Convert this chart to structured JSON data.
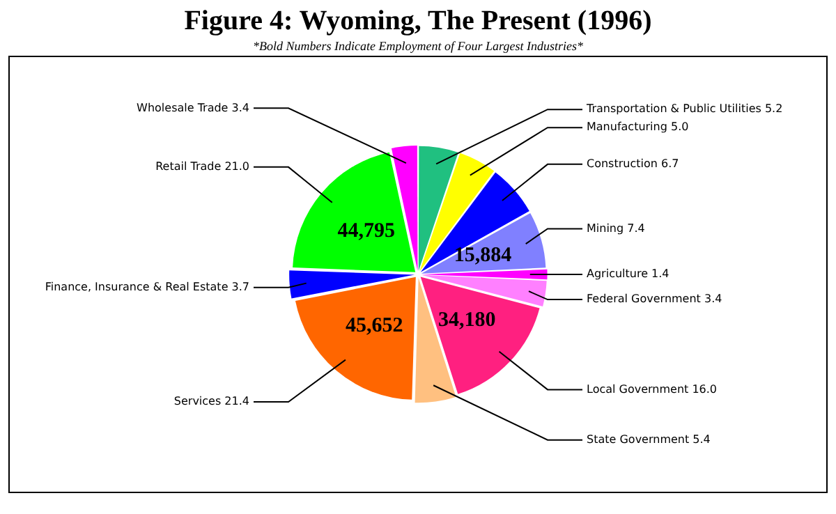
{
  "chart_data": {
    "type": "pie",
    "title": "Figure 4:  Wyoming, The Present (1996)",
    "subtitle": "*Bold Numbers Indicate Employment of Four Largest Industries*",
    "categories": [
      "Transportation & Public Utilities",
      "Manufacturing",
      "Construction",
      "Mining",
      "Agriculture",
      "Federal Government",
      "Local Government",
      "State Government",
      "Services",
      "Finance, Insurance & Real Estate",
      "Retail Trade",
      "Wholesale Trade"
    ],
    "values": [
      5.2,
      5.0,
      6.7,
      7.4,
      1.4,
      3.4,
      16.0,
      5.4,
      21.4,
      3.7,
      21.0,
      3.4
    ],
    "value_labels": [
      "5.2",
      "5.0",
      "6.7",
      "7.4",
      "1.4",
      "3.4",
      "16.0",
      "5.4",
      "21.4",
      "3.7",
      "21.0",
      "3.4"
    ],
    "colors": [
      "#20c080",
      "#ffff00",
      "#0000ff",
      "#8080ff",
      "#ff00ff",
      "#ff80ff",
      "#ff2080",
      "#ffc080",
      "#ff6600",
      "#0000ff",
      "#00ff00",
      "#ff00ff"
    ],
    "annotations": [
      {
        "text": "15,884",
        "x": "Mining"
      },
      {
        "text": "34,180",
        "x": "Local Government"
      },
      {
        "text": "45,652",
        "x": "Services"
      },
      {
        "text": "44,795",
        "x": "Retail Trade"
      }
    ],
    "legend": false
  }
}
